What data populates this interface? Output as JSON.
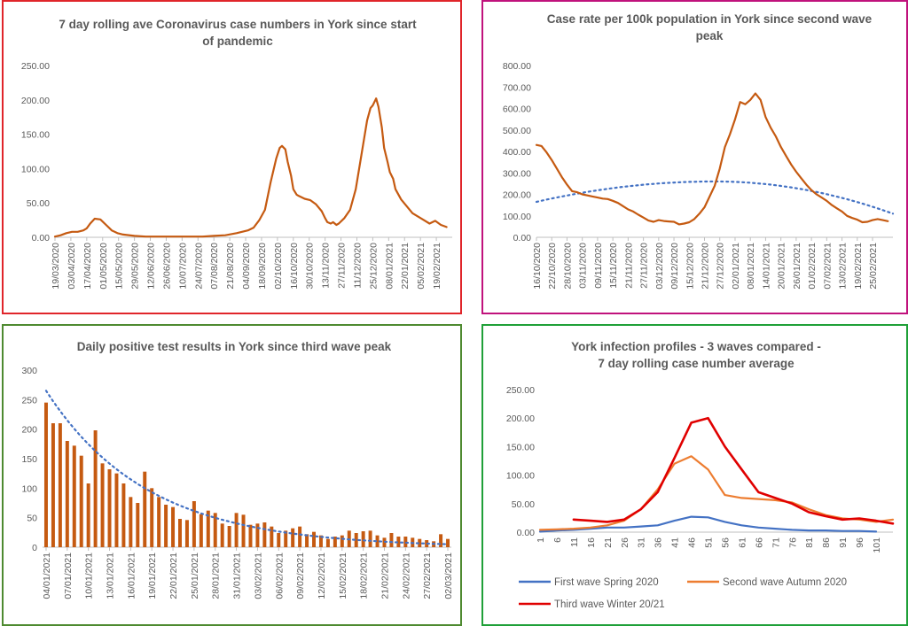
{
  "colors": {
    "orange": "#C55A11",
    "blue": "#4472C4",
    "orange_light": "#ED7D31",
    "red": "#E00000",
    "panel1_border": "#E0252A",
    "panel2_border": "#C0127C",
    "panel3_border": "#4E8A30",
    "panel4_border": "#1FA038"
  },
  "chart_data": [
    {
      "type": "line",
      "title": "7 day rolling ave Coronavirus case numbers in York since start of pandemic",
      "title_lines": [
        "7 day rolling ave Coronavirus case numbers in York since start",
        "of pandemic"
      ],
      "ylim": [
        0,
        250
      ],
      "yticks": [
        "0.00",
        "50.00",
        "100.00",
        "150.00",
        "200.00",
        "250.00"
      ],
      "x_tick_labels": [
        "19/03/2020",
        "03/04/2020",
        "17/04/2020",
        "01/05/2020",
        "15/05/2020",
        "29/05/2020",
        "12/06/2020",
        "26/06/2020",
        "10/07/2020",
        "24/07/2020",
        "07/08/2020",
        "21/08/2020",
        "04/09/2020",
        "18/09/2020",
        "02/10/2020",
        "16/10/2020",
        "30/10/2020",
        "13/11/2020",
        "27/11/2020",
        "11/12/2020",
        "25/12/2020",
        "08/01/2021",
        "22/01/2021",
        "05/02/2021",
        "19/02/2021"
      ],
      "x_start": "19/03/2020",
      "x_days": [
        0,
        5,
        10,
        15,
        20,
        25,
        28,
        31,
        35,
        40,
        45,
        50,
        55,
        60,
        70,
        80,
        90,
        100,
        110,
        120,
        130,
        140,
        150,
        160,
        170,
        175,
        180,
        185,
        190,
        195,
        198,
        200,
        203,
        205,
        208,
        210,
        213,
        215,
        220,
        225,
        230,
        235,
        238,
        240,
        243,
        245,
        248,
        250,
        255,
        260,
        265,
        270,
        275,
        278,
        280,
        283,
        285,
        288,
        290,
        293,
        295,
        298,
        300,
        305,
        310,
        315,
        320,
        325,
        330,
        335,
        340,
        345
      ],
      "values": [
        1,
        3,
        6,
        8,
        8,
        10,
        13,
        20,
        27,
        26,
        18,
        10,
        6,
        4,
        2,
        1,
        1,
        1,
        1,
        1,
        1,
        2,
        3,
        6,
        10,
        14,
        25,
        40,
        80,
        115,
        130,
        133,
        128,
        110,
        90,
        70,
        62,
        60,
        56,
        54,
        48,
        38,
        28,
        22,
        20,
        22,
        18,
        20,
        28,
        40,
        70,
        120,
        170,
        188,
        192,
        202,
        190,
        160,
        130,
        110,
        95,
        85,
        70,
        55,
        45,
        35,
        30,
        25,
        20,
        24,
        18,
        15
      ],
      "series": [
        {
          "name": "",
          "color": "#C55A11"
        }
      ]
    },
    {
      "type": "line",
      "title": "Case rate per 100k population in York since second wave peak",
      "title_lines": [
        "Case rate per 100k population in York since second wave",
        "peak"
      ],
      "ylim": [
        0,
        800
      ],
      "yticks": [
        "0.00",
        "100.00",
        "200.00",
        "300.00",
        "400.00",
        "500.00",
        "600.00",
        "700.00",
        "800.00"
      ],
      "x_tick_labels": [
        "16/10/2020",
        "22/10/2020",
        "28/10/2020",
        "03/11/2020",
        "09/11/2020",
        "15/11/2020",
        "21/11/2020",
        "27/11/2020",
        "03/12/2020",
        "09/12/2020",
        "15/12/2020",
        "21/12/2020",
        "27/12/2020",
        "02/01/2021",
        "08/01/2021",
        "14/01/2021",
        "20/01/2021",
        "26/01/2021",
        "01/02/2021",
        "07/02/2021",
        "13/02/2021",
        "19/02/2021",
        "25/02/2021"
      ],
      "x_start": "16/10/2020",
      "x_days": [
        0,
        2,
        4,
        6,
        8,
        10,
        12,
        14,
        16,
        18,
        20,
        22,
        24,
        26,
        28,
        30,
        32,
        34,
        36,
        38,
        40,
        42,
        44,
        46,
        48,
        50,
        52,
        54,
        56,
        58,
        60,
        62,
        64,
        66,
        68,
        70,
        72,
        74,
        76,
        78,
        80,
        82,
        84,
        86,
        88,
        90,
        92,
        94,
        96,
        98,
        100,
        102,
        104,
        106,
        108,
        110,
        112,
        114,
        116,
        118,
        120,
        122,
        124,
        126,
        128,
        130,
        132,
        134,
        136,
        138
      ],
      "values": [
        430,
        425,
        395,
        360,
        320,
        280,
        245,
        215,
        210,
        200,
        195,
        190,
        185,
        180,
        178,
        170,
        160,
        145,
        130,
        120,
        105,
        92,
        78,
        72,
        80,
        76,
        74,
        72,
        60,
        64,
        70,
        85,
        110,
        140,
        190,
        240,
        320,
        420,
        480,
        550,
        630,
        620,
        640,
        670,
        640,
        560,
        510,
        470,
        420,
        380,
        340,
        305,
        275,
        245,
        220,
        200,
        185,
        170,
        150,
        135,
        120,
        100,
        90,
        82,
        70,
        72,
        80,
        85,
        80,
        75
      ],
      "trend": {
        "type": "polynomial",
        "peak_value": 260,
        "start_value": 165,
        "end_value": 110
      },
      "series": [
        {
          "name": "",
          "color": "#C55A11"
        }
      ]
    },
    {
      "type": "bar",
      "title": "Daily positive test results in York since third wave peak",
      "ylim": [
        0,
        300
      ],
      "yticks": [
        "0",
        "50",
        "100",
        "150",
        "200",
        "250",
        "300"
      ],
      "x_tick_labels": [
        "04/01/2021",
        "07/01/2021",
        "10/01/2021",
        "13/01/2021",
        "16/01/2021",
        "19/01/2021",
        "22/01/2021",
        "25/01/2021",
        "28/01/2021",
        "31/01/2021",
        "03/02/2021",
        "06/02/2021",
        "09/02/2021",
        "12/02/2021",
        "15/02/2021",
        "18/02/2021",
        "21/02/2021",
        "24/02/2021",
        "27/02/2021",
        "02/03/2021"
      ],
      "values": [
        245,
        210,
        210,
        180,
        172,
        155,
        108,
        198,
        142,
        132,
        125,
        108,
        85,
        75,
        128,
        100,
        85,
        72,
        68,
        48,
        46,
        78,
        56,
        62,
        58,
        40,
        36,
        58,
        55,
        38,
        40,
        42,
        35,
        24,
        28,
        32,
        35,
        22,
        26,
        20,
        14,
        18,
        20,
        28,
        24,
        27,
        28,
        20,
        16,
        24,
        18,
        18,
        16,
        14,
        12,
        10,
        22,
        14
      ],
      "trend": {
        "type": "exponential",
        "start_value": 265,
        "end_value": 5
      },
      "series": [
        {
          "name": "",
          "color": "#C55A11"
        }
      ]
    },
    {
      "type": "line",
      "title": "York infection profiles - 3 waves compared - 7 day rolling case number average",
      "title_lines": [
        "York infection profiles - 3 waves compared -",
        "7 day rolling case number average"
      ],
      "ylim": [
        0,
        250
      ],
      "yticks": [
        "0.00",
        "50.00",
        "100.00",
        "150.00",
        "200.00",
        "250.00"
      ],
      "x_tick_labels": [
        "1",
        "6",
        "11",
        "16",
        "21",
        "26",
        "31",
        "36",
        "41",
        "46",
        "51",
        "56",
        "61",
        "66",
        "71",
        "76",
        "81",
        "86",
        "91",
        "96",
        "101"
      ],
      "x": [
        1,
        6,
        11,
        16,
        21,
        26,
        31,
        36,
        41,
        46,
        51,
        56,
        61,
        66,
        71,
        76,
        81,
        86,
        91,
        96,
        101,
        106
      ],
      "series": [
        {
          "name": "First wave Spring 2020",
          "color": "#4472C4",
          "values": [
            1,
            3,
            4,
            6,
            8,
            8,
            10,
            12,
            20,
            27,
            26,
            18,
            12,
            8,
            6,
            4,
            3,
            3,
            2,
            2,
            1,
            null
          ]
        },
        {
          "name": "Second wave Autumn 2020",
          "color": "#ED7D31",
          "values": [
            4,
            5,
            6,
            8,
            12,
            20,
            40,
            75,
            120,
            133,
            110,
            65,
            60,
            58,
            56,
            52,
            40,
            30,
            24,
            22,
            18,
            22
          ]
        },
        {
          "name": "Third wave Winter 20/21",
          "color": "#E00000",
          "values": [
            null,
            null,
            22,
            20,
            18,
            22,
            40,
            70,
            130,
            192,
            200,
            150,
            110,
            70,
            60,
            50,
            35,
            28,
            22,
            24,
            20,
            15
          ]
        }
      ],
      "legend": "bottom"
    }
  ]
}
